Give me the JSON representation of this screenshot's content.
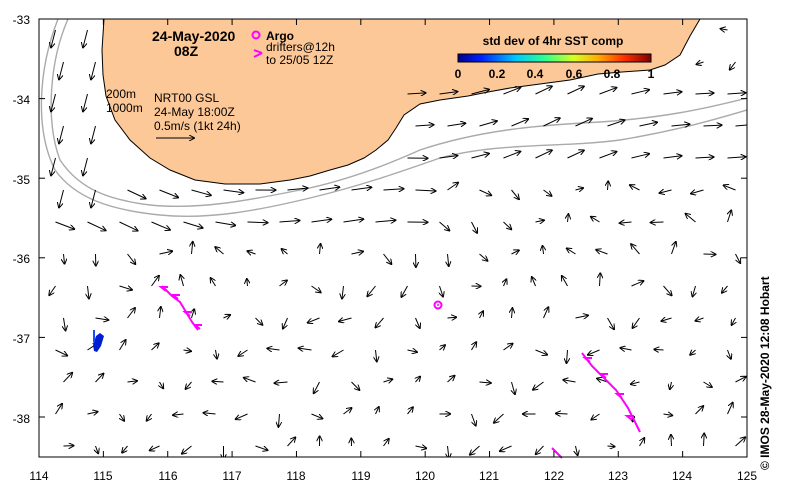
{
  "map": {
    "date": "24-May-2020",
    "hour": "08Z",
    "legend_argo": "Argo",
    "legend_drifters_1": "drifters@12h",
    "legend_drifters_2": "to 25/05 12Z",
    "info_200m": "200m",
    "info_1000m": "1000m",
    "info_model": "NRT00 GSL",
    "info_time": "24-May 18:00Z",
    "info_scale": "0.5m/s (1kt 24h)",
    "colorbar_title": "std dev of 4hr SST comp",
    "colorbar_ticks": [
      "0",
      "0.2",
      "0.4",
      "0.6",
      "0.8",
      "1"
    ],
    "credit": "© IMOS 28-May-2020 12:08 Hobart",
    "land_color": "#fdc897",
    "argo_color": "#ff00ff",
    "drifter_color": "#ff00ff",
    "contour_color": "#aaaaaa"
  },
  "axes": {
    "x_ticks": [
      "114",
      "115",
      "116",
      "117",
      "118",
      "119",
      "120",
      "121",
      "122",
      "123",
      "124",
      "125"
    ],
    "y_ticks": [
      "-33",
      "-34",
      "-35",
      "-36",
      "-37",
      "-38"
    ]
  },
  "argo_float": {
    "lon": 120.2,
    "lat": -36.58
  }
}
